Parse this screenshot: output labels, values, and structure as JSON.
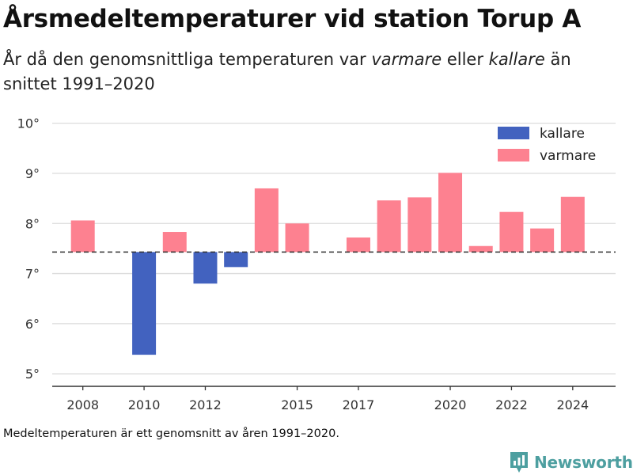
{
  "title": "Årsmedeltemperaturer vid station Torup A",
  "subtitle": {
    "prefix": "År då den genomsnittliga temperaturen var ",
    "warmer": "varmare",
    "middle": " eller ",
    "colder": "kallare",
    "suffix": " än snittet 1991–2020"
  },
  "note": "Medeltemperaturen är ett genomsnitt av åren 1991–2020.",
  "brand": {
    "name": "Newsworthy",
    "icon": "newsworthy-logo-icon",
    "color": "#4d9fa0"
  },
  "chart_data": {
    "type": "bar",
    "baseline": 7.43,
    "baseline_style": "dashed",
    "ylim": [
      4.75,
      10.2
    ],
    "yticks": [
      5,
      6,
      7,
      8,
      9,
      10
    ],
    "ytick_labels": [
      "5°",
      "6°",
      "7°",
      "8°",
      "9°",
      "10°"
    ],
    "xlim": [
      2007.0,
      2025.4
    ],
    "xticks": [
      2008,
      2010,
      2012,
      2015,
      2017,
      2020,
      2022,
      2024
    ],
    "xtick_labels": [
      "2008",
      "2010",
      "2012",
      "2015",
      "2017",
      "2020",
      "2022",
      "2024"
    ],
    "grid": true,
    "legend_position": "top-right",
    "legend": [
      {
        "key": "colder",
        "label": "kallare",
        "color": "#4262bf"
      },
      {
        "key": "warmer",
        "label": "varmare",
        "color": "#fd8190"
      }
    ],
    "x": [
      2008,
      2010,
      2011,
      2012,
      2013,
      2014,
      2015,
      2017,
      2018,
      2019,
      2020,
      2021,
      2022,
      2023,
      2024
    ],
    "values": [
      8.06,
      5.38,
      7.83,
      6.8,
      7.13,
      8.7,
      8.0,
      7.72,
      8.46,
      8.52,
      9.01,
      7.55,
      8.23,
      7.9,
      8.53
    ],
    "xlabel": "",
    "ylabel": ""
  }
}
